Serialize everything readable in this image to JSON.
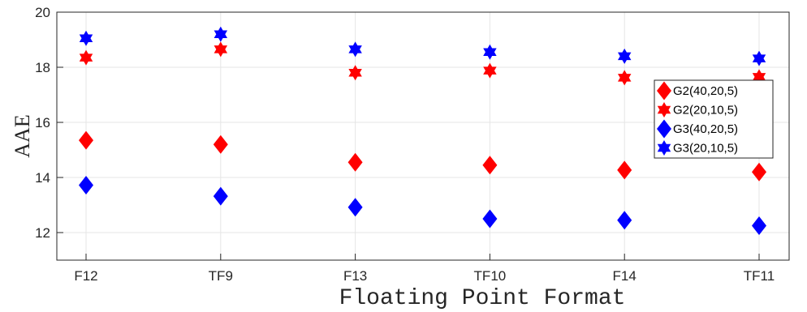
{
  "chart_data": {
    "type": "scatter",
    "categories": [
      "F12",
      "TF9",
      "F13",
      "TF10",
      "F14",
      "TF11"
    ],
    "xlabel": "Floating Point Format",
    "ylabel": "AAE",
    "ylim": [
      11,
      20
    ],
    "yticks": [
      12,
      14,
      16,
      18,
      20
    ],
    "grid": true,
    "legend_position": "right",
    "series": [
      {
        "name": "G2(40,20,5)",
        "marker": "diamond",
        "color": "#ff0000",
        "values": [
          15.35,
          15.2,
          14.55,
          14.45,
          14.27,
          14.2
        ]
      },
      {
        "name": "G2(20,10,5)",
        "marker": "hexagram",
        "color": "#ff0000",
        "values": [
          18.35,
          18.65,
          17.8,
          17.88,
          17.62,
          17.65
        ]
      },
      {
        "name": "G3(40,20,5)",
        "marker": "diamond",
        "color": "#0000ff",
        "values": [
          13.72,
          13.32,
          12.92,
          12.5,
          12.45,
          12.25
        ]
      },
      {
        "name": "G3(20,10,5)",
        "marker": "hexagram",
        "color": "#0000ff",
        "values": [
          19.05,
          19.2,
          18.65,
          18.55,
          18.4,
          18.32
        ]
      }
    ]
  }
}
